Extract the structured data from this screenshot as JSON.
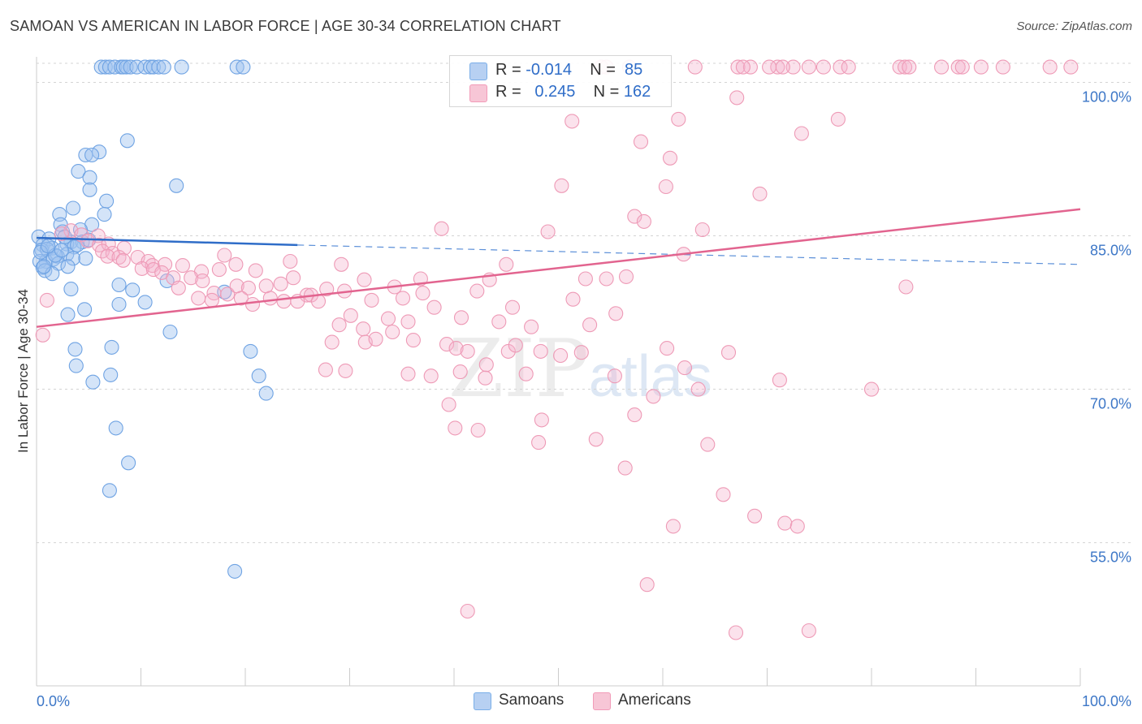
{
  "title": "SAMOAN VS AMERICAN IN LABOR FORCE | AGE 30-34 CORRELATION CHART",
  "source": "Source: ZipAtlas.com",
  "watermark": {
    "zip": "ZIP",
    "atlas": "atlas"
  },
  "legend": {
    "rows": [
      {
        "r_label": "R =",
        "r_value": "-0.014",
        "n_label": "N =",
        "n_value": "85",
        "color": "#7aaee8"
      },
      {
        "r_label": "R =",
        "r_value": "0.245",
        "n_label": "N =",
        "n_value": "162",
        "color": "#f29bb8"
      }
    ]
  },
  "bottom_legend": [
    {
      "label": "Samoans",
      "color": "#7aaee8"
    },
    {
      "label": "Americans",
      "color": "#f29bb8"
    }
  ],
  "colors": {
    "blue": "#2f6dc8",
    "blue_fill": "#b7d0f2",
    "pink": "#e2648f",
    "pink_fill": "#f7c6d6",
    "axis_text": "#3d77c7"
  },
  "chart_data": {
    "type": "scatter",
    "title": "SAMOAN VS AMERICAN IN LABOR FORCE | AGE 30-34 CORRELATION CHART",
    "xlabel": "",
    "ylabel": "In Labor Force | Age 30-34",
    "xlim": [
      0,
      100
    ],
    "ylim": [
      41,
      102.5
    ],
    "x_tick_labels": [
      "0.0%",
      "100.0%"
    ],
    "y_ticks": [
      55,
      70,
      85,
      100
    ],
    "y_tick_labels": [
      "55.0%",
      "70.0%",
      "85.0%",
      "100.0%"
    ],
    "grid": true,
    "series": [
      {
        "name": "Samoans",
        "r": -0.014,
        "n": 85,
        "trend": {
          "x": [
            0,
            25
          ],
          "y": [
            84.8,
            84.1
          ],
          "dashed_to": [
            100,
            82.2
          ]
        },
        "points": [
          [
            6.2,
            101.5
          ],
          [
            6.6,
            101.5
          ],
          [
            7.0,
            101.5
          ],
          [
            7.5,
            101.5
          ],
          [
            8.1,
            101.5
          ],
          [
            8.3,
            101.5
          ],
          [
            8.6,
            101.5
          ],
          [
            9.0,
            101.5
          ],
          [
            9.6,
            101.5
          ],
          [
            10.4,
            101.5
          ],
          [
            10.9,
            101.5
          ],
          [
            11.2,
            101.5
          ],
          [
            11.7,
            101.5
          ],
          [
            12.2,
            101.5
          ],
          [
            13.9,
            101.5
          ],
          [
            19.2,
            101.5
          ],
          [
            19.8,
            101.5
          ],
          [
            8.7,
            94.3
          ],
          [
            6.0,
            93.2
          ],
          [
            4.7,
            92.9
          ],
          [
            5.3,
            92.9
          ],
          [
            4.0,
            91.3
          ],
          [
            5.1,
            90.7
          ],
          [
            13.4,
            89.9
          ],
          [
            5.1,
            89.5
          ],
          [
            6.7,
            88.4
          ],
          [
            3.5,
            87.7
          ],
          [
            6.5,
            87.1
          ],
          [
            2.2,
            87.1
          ],
          [
            2.3,
            86.1
          ],
          [
            5.3,
            86.1
          ],
          [
            4.2,
            85.6
          ],
          [
            2.5,
            85.4
          ],
          [
            0.2,
            84.9
          ],
          [
            1.2,
            84.7
          ],
          [
            3.3,
            84.4
          ],
          [
            4.4,
            84.4
          ],
          [
            5.0,
            84.6
          ],
          [
            2.9,
            84.2
          ],
          [
            0.6,
            84.1
          ],
          [
            1.5,
            83.8
          ],
          [
            3.6,
            83.9
          ],
          [
            0.5,
            83.6
          ],
          [
            1.0,
            83.7
          ],
          [
            2.9,
            83.2
          ],
          [
            2.0,
            83.0
          ],
          [
            3.5,
            82.8
          ],
          [
            4.7,
            82.8
          ],
          [
            0.9,
            82.5
          ],
          [
            1.6,
            82.7
          ],
          [
            2.1,
            82.3
          ],
          [
            0.3,
            82.5
          ],
          [
            0.6,
            81.9
          ],
          [
            3.0,
            82.0
          ],
          [
            0.8,
            81.6
          ],
          [
            1.5,
            81.3
          ],
          [
            12.5,
            80.6
          ],
          [
            7.9,
            80.2
          ],
          [
            3.3,
            79.8
          ],
          [
            9.2,
            79.7
          ],
          [
            18.0,
            79.5
          ],
          [
            10.4,
            78.5
          ],
          [
            7.9,
            78.3
          ],
          [
            4.6,
            77.8
          ],
          [
            3.0,
            77.3
          ],
          [
            12.8,
            75.6
          ],
          [
            7.2,
            74.1
          ],
          [
            3.7,
            73.9
          ],
          [
            20.5,
            73.7
          ],
          [
            3.8,
            72.3
          ],
          [
            7.1,
            71.4
          ],
          [
            21.3,
            71.3
          ],
          [
            5.4,
            70.7
          ],
          [
            22.0,
            69.6
          ],
          [
            7.6,
            66.2
          ],
          [
            8.8,
            62.8
          ],
          [
            7.0,
            60.1
          ],
          [
            19.0,
            52.2
          ],
          [
            0.4,
            83.4
          ],
          [
            1.8,
            83.1
          ],
          [
            2.7,
            84.9
          ],
          [
            1.1,
            84.0
          ],
          [
            3.9,
            84.1
          ],
          [
            0.7,
            82.0
          ],
          [
            2.4,
            83.6
          ]
        ]
      },
      {
        "name": "Americans",
        "r": 0.245,
        "n": 162,
        "trend": {
          "x": [
            0,
            100
          ],
          "y": [
            76.1,
            87.6
          ]
        },
        "points": [
          [
            54.1,
            101.5
          ],
          [
            54.6,
            101.5
          ],
          [
            56.8,
            101.5
          ],
          [
            63.1,
            101.5
          ],
          [
            67.2,
            101.5
          ],
          [
            68.4,
            101.5
          ],
          [
            71.0,
            101.5
          ],
          [
            72.5,
            101.5
          ],
          [
            74.0,
            101.5
          ],
          [
            75.4,
            101.5
          ],
          [
            77.0,
            101.5
          ],
          [
            77.8,
            101.5
          ],
          [
            82.7,
            101.5
          ],
          [
            83.2,
            101.5
          ],
          [
            83.6,
            101.5
          ],
          [
            86.7,
            101.5
          ],
          [
            88.3,
            101.5
          ],
          [
            88.7,
            101.5
          ],
          [
            90.5,
            101.5
          ],
          [
            92.6,
            101.5
          ],
          [
            97.1,
            101.5
          ],
          [
            99.1,
            101.5
          ],
          [
            67.7,
            101.5
          ],
          [
            70.2,
            101.5
          ],
          [
            71.5,
            101.5
          ],
          [
            67.1,
            98.5
          ],
          [
            51.3,
            96.2
          ],
          [
            61.5,
            96.4
          ],
          [
            76.8,
            96.4
          ],
          [
            73.3,
            95.0
          ],
          [
            57.9,
            94.2
          ],
          [
            60.7,
            92.6
          ],
          [
            50.3,
            89.9
          ],
          [
            60.3,
            89.8
          ],
          [
            69.3,
            89.1
          ],
          [
            57.3,
            86.9
          ],
          [
            58.2,
            86.4
          ],
          [
            38.8,
            85.7
          ],
          [
            49.0,
            85.4
          ],
          [
            63.8,
            85.6
          ],
          [
            3.3,
            85.5
          ],
          [
            4.3,
            85.1
          ],
          [
            5.9,
            85.0
          ],
          [
            2.4,
            85.2
          ],
          [
            4.9,
            84.5
          ],
          [
            6.0,
            84.1
          ],
          [
            6.9,
            84.2
          ],
          [
            8.4,
            83.8
          ],
          [
            6.3,
            83.5
          ],
          [
            7.3,
            83.3
          ],
          [
            6.8,
            83.0
          ],
          [
            7.9,
            82.9
          ],
          [
            8.3,
            82.6
          ],
          [
            9.7,
            82.9
          ],
          [
            10.7,
            82.5
          ],
          [
            11.1,
            82.1
          ],
          [
            12.3,
            82.2
          ],
          [
            14.0,
            82.1
          ],
          [
            10.1,
            81.8
          ],
          [
            11.2,
            81.7
          ],
          [
            12.0,
            81.4
          ],
          [
            15.8,
            81.5
          ],
          [
            17.5,
            81.7
          ],
          [
            19.1,
            82.2
          ],
          [
            21.0,
            81.6
          ],
          [
            18.0,
            83.1
          ],
          [
            24.3,
            82.5
          ],
          [
            29.2,
            82.2
          ],
          [
            45.0,
            82.2
          ],
          [
            36.8,
            80.8
          ],
          [
            43.4,
            80.7
          ],
          [
            52.6,
            80.8
          ],
          [
            54.6,
            80.8
          ],
          [
            56.5,
            81.0
          ],
          [
            62.0,
            83.2
          ],
          [
            83.3,
            80.0
          ],
          [
            13.1,
            80.9
          ],
          [
            13.6,
            79.9
          ],
          [
            14.8,
            80.9
          ],
          [
            15.9,
            80.6
          ],
          [
            17.0,
            79.4
          ],
          [
            18.3,
            79.3
          ],
          [
            19.2,
            80.1
          ],
          [
            20.3,
            79.9
          ],
          [
            22.0,
            80.1
          ],
          [
            23.4,
            80.3
          ],
          [
            24.6,
            80.9
          ],
          [
            25.9,
            79.2
          ],
          [
            27.8,
            79.8
          ],
          [
            29.5,
            79.6
          ],
          [
            31.4,
            80.7
          ],
          [
            34.3,
            80.0
          ],
          [
            35.1,
            78.9
          ],
          [
            37.0,
            79.4
          ],
          [
            42.2,
            79.6
          ],
          [
            15.5,
            78.9
          ],
          [
            16.8,
            78.7
          ],
          [
            19.6,
            78.9
          ],
          [
            20.7,
            78.3
          ],
          [
            22.4,
            78.9
          ],
          [
            23.7,
            78.6
          ],
          [
            25.0,
            78.6
          ],
          [
            26.3,
            79.2
          ],
          [
            27.0,
            78.6
          ],
          [
            32.1,
            78.7
          ],
          [
            38.1,
            78.0
          ],
          [
            45.6,
            78.0
          ],
          [
            51.4,
            78.8
          ],
          [
            55.5,
            77.4
          ],
          [
            30.1,
            77.2
          ],
          [
            33.7,
            76.9
          ],
          [
            35.6,
            76.6
          ],
          [
            40.7,
            77.0
          ],
          [
            44.3,
            76.6
          ],
          [
            47.4,
            76.1
          ],
          [
            53.0,
            76.3
          ],
          [
            29.0,
            76.3
          ],
          [
            31.3,
            75.9
          ],
          [
            34.1,
            75.6
          ],
          [
            28.3,
            74.6
          ],
          [
            31.5,
            74.6
          ],
          [
            32.5,
            74.9
          ],
          [
            36.1,
            74.8
          ],
          [
            39.3,
            74.4
          ],
          [
            40.2,
            74.0
          ],
          [
            41.3,
            73.7
          ],
          [
            45.2,
            73.7
          ],
          [
            45.9,
            74.3
          ],
          [
            48.3,
            73.7
          ],
          [
            52.2,
            73.6
          ],
          [
            60.4,
            74.0
          ],
          [
            62.1,
            72.1
          ],
          [
            66.3,
            73.6
          ],
          [
            50.2,
            73.3
          ],
          [
            43.1,
            72.4
          ],
          [
            27.7,
            71.9
          ],
          [
            29.6,
            71.8
          ],
          [
            35.6,
            71.5
          ],
          [
            37.8,
            71.3
          ],
          [
            40.6,
            71.7
          ],
          [
            43.0,
            71.1
          ],
          [
            46.9,
            71.5
          ],
          [
            55.4,
            71.3
          ],
          [
            59.1,
            69.3
          ],
          [
            63.4,
            70.0
          ],
          [
            71.2,
            70.9
          ],
          [
            80.0,
            70.0
          ],
          [
            39.5,
            68.5
          ],
          [
            57.3,
            67.5
          ],
          [
            48.4,
            67.0
          ],
          [
            40.1,
            66.2
          ],
          [
            42.3,
            66.0
          ],
          [
            48.1,
            64.8
          ],
          [
            53.6,
            65.1
          ],
          [
            64.3,
            64.6
          ],
          [
            56.4,
            62.3
          ],
          [
            65.8,
            59.7
          ],
          [
            61.0,
            56.6
          ],
          [
            68.8,
            57.6
          ],
          [
            71.7,
            56.9
          ],
          [
            72.9,
            56.6
          ],
          [
            58.5,
            50.9
          ],
          [
            41.3,
            48.3
          ],
          [
            67.0,
            46.2
          ],
          [
            74.0,
            46.4
          ],
          [
            0.6,
            75.3
          ],
          [
            1.0,
            78.7
          ]
        ]
      }
    ]
  }
}
